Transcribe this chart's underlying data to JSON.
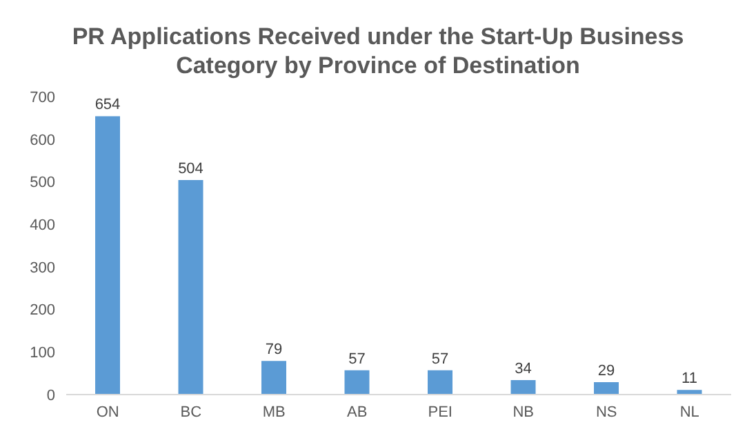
{
  "chart_data": {
    "type": "bar",
    "title": "PR Applications Received under the Start-Up Business Category by Province of Destination",
    "categories": [
      "ON",
      "BC",
      "MB",
      "AB",
      "PEI",
      "NB",
      "NS",
      "NL"
    ],
    "values": [
      654,
      504,
      79,
      57,
      57,
      34,
      29,
      11
    ],
    "color": "#5b9bd5",
    "ylim": [
      0,
      700
    ],
    "yticks": [
      0,
      100,
      200,
      300,
      400,
      500,
      600,
      700
    ],
    "grid": false,
    "data_labels": true
  }
}
